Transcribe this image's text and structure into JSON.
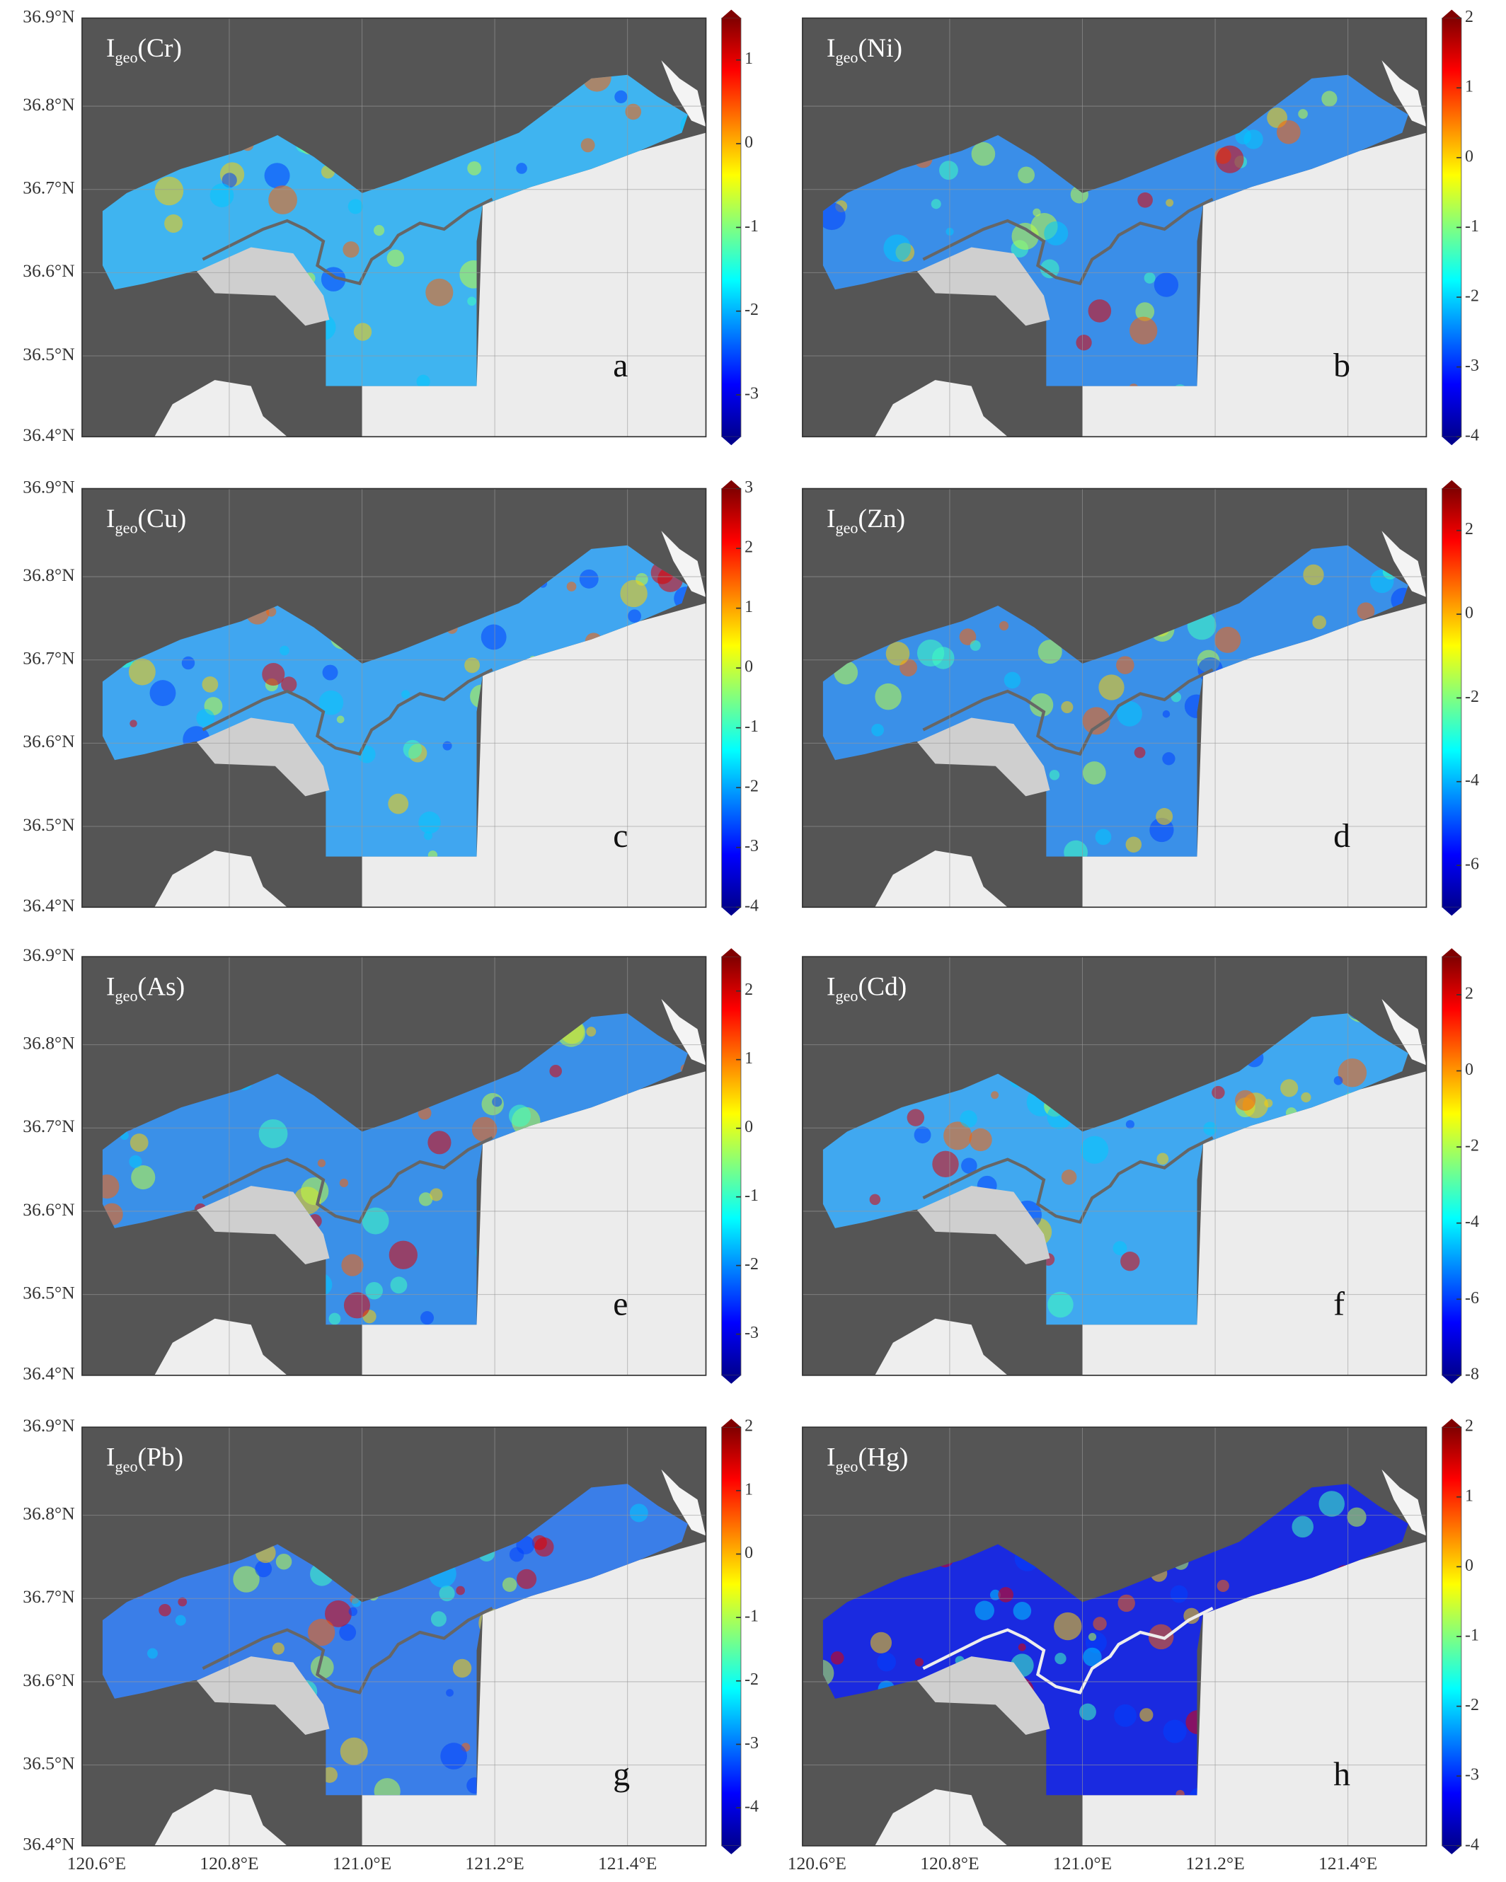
{
  "panels": [
    {
      "title_base": "I",
      "title_sub": "geo",
      "title_element": "(Cr)",
      "letter": "a",
      "colorbar_range": [
        -3.5,
        1.5
      ],
      "colorbar_ticks": [
        1,
        0,
        -1,
        -2,
        -3
      ],
      "base_color": "#3fb4f0",
      "outline_color": "#666666"
    },
    {
      "title_base": "I",
      "title_sub": "geo",
      "title_element": "(Ni)",
      "letter": "b",
      "colorbar_range": [
        -4,
        2
      ],
      "colorbar_ticks": [
        2,
        1,
        0,
        -1,
        -2,
        -3,
        -4
      ],
      "base_color": "#3a8ee8",
      "outline_color": "#666666"
    },
    {
      "title_base": "I",
      "title_sub": "geo",
      "title_element": "(Cu)",
      "letter": "c",
      "colorbar_range": [
        -4,
        3
      ],
      "colorbar_ticks": [
        3,
        2,
        1,
        0,
        -1,
        -2,
        -3,
        -4
      ],
      "base_color": "#40a6f0",
      "outline_color": "#666666"
    },
    {
      "title_base": "I",
      "title_sub": "geo",
      "title_element": "(Zn)",
      "letter": "d",
      "colorbar_range": [
        -7,
        3
      ],
      "colorbar_ticks": [
        2,
        0,
        -2,
        -4,
        -6
      ],
      "base_color": "#3a90e8",
      "outline_color": "#666666"
    },
    {
      "title_base": "I",
      "title_sub": "geo",
      "title_element": "(As)",
      "letter": "e",
      "colorbar_range": [
        -3.6,
        2.5
      ],
      "colorbar_ticks": [
        2,
        1,
        0,
        -1,
        -2,
        -3
      ],
      "base_color": "#3a90e8",
      "outline_color": "#666666"
    },
    {
      "title_base": "I",
      "title_sub": "geo",
      "title_element": "(Cd)",
      "letter": "f",
      "colorbar_range": [
        -8,
        3
      ],
      "colorbar_ticks": [
        2,
        0,
        -2,
        -4,
        -6,
        -8
      ],
      "base_color": "#40a8f0",
      "outline_color": "#666666"
    },
    {
      "title_base": "I",
      "title_sub": "geo",
      "title_element": "(Pb)",
      "letter": "g",
      "colorbar_range": [
        -4.6,
        2
      ],
      "colorbar_ticks": [
        2,
        1,
        0,
        -1,
        -2,
        -3,
        -4
      ],
      "base_color": "#3a7ee8",
      "outline_color": "#666666"
    },
    {
      "title_base": "I",
      "title_sub": "geo",
      "title_element": "(Hg)",
      "letter": "h",
      "colorbar_range": [
        -4,
        2
      ],
      "colorbar_ticks": [
        2,
        1,
        0,
        -1,
        -2,
        -3,
        -4
      ],
      "base_color": "#1a2ae0",
      "outline_color": "#eeeeee"
    }
  ],
  "lat_labels": [
    "36.9°N",
    "36.8°N",
    "36.7°N",
    "36.6°N",
    "36.5°N",
    "36.4°N"
  ],
  "lon_labels": [
    "120.6°E",
    "120.8°E",
    "121.0°E",
    "121.2°E",
    "121.4°E"
  ]
}
